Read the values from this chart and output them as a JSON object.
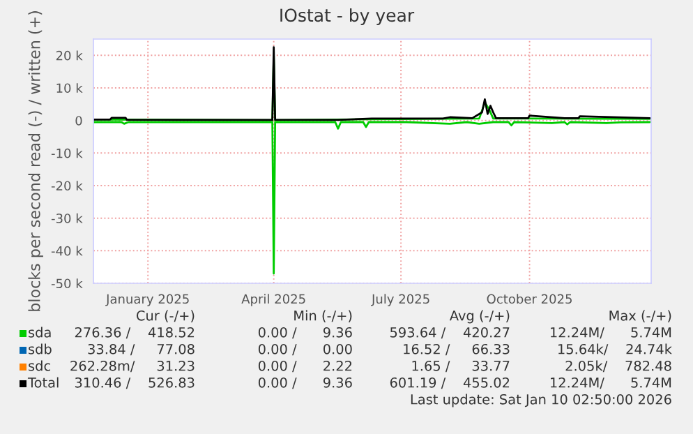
{
  "chart_data": {
    "type": "line",
    "title": "IOstat - by year",
    "ylabel": "blocks per second read (-) / written (+)",
    "xlim": [
      "2024-12-08",
      "2026-01-11"
    ],
    "xticks": [
      {
        "value": "2025-01-16",
        "label": "January 2025"
      },
      {
        "value": "2025-04-16",
        "label": "April 2025"
      },
      {
        "value": "2025-07-16",
        "label": "July 2025"
      },
      {
        "value": "2025-10-16",
        "label": "October 2025"
      }
    ],
    "ylim": [
      -50000,
      25000
    ],
    "yticks": [
      {
        "value": -50000,
        "label": "-50 k"
      },
      {
        "value": -40000,
        "label": "-40 k"
      },
      {
        "value": -30000,
        "label": "-30 k"
      },
      {
        "value": -20000,
        "label": "-20 k"
      },
      {
        "value": -10000,
        "label": "-10 k"
      },
      0,
      {
        "value": 10000,
        "label": "10 k"
      },
      {
        "value": 20000,
        "label": "20 k"
      }
    ],
    "grid": true,
    "legend": "bottom",
    "series": [
      {
        "name": "sda",
        "color": "#00cc00",
        "x": [
          "2024-12-08",
          "2025-04-15",
          "2025-04-16",
          "2025-04-17",
          "2025-06-25",
          "2025-09-10",
          "2025-09-14",
          "2025-09-17",
          "2025-09-20",
          "2026-01-10"
        ],
        "values": [
          300,
          100,
          20000,
          100,
          400,
          600,
          5500,
          3500,
          600,
          500
        ]
      },
      {
        "color": "#00cc00",
        "x": [
          "2024-12-08",
          "2024-12-28",
          "2024-12-30",
          "2025-01-02",
          "2025-02-01",
          "2025-03-01",
          "2025-04-15",
          "2025-04-16",
          "2025-04-17",
          "2025-05-01",
          "2025-05-30",
          "2025-06-01",
          "2025-06-03",
          "2025-06-19",
          "2025-06-21",
          "2025-06-23",
          "2025-07-20",
          "2025-08-20",
          "2025-09-01",
          "2025-09-10",
          "2025-09-20",
          "2025-10-01",
          "2025-10-03",
          "2025-10-05",
          "2025-11-01",
          "2025-11-10",
          "2025-11-12",
          "2025-11-14",
          "2025-12-10",
          "2025-12-20",
          "2026-01-10"
        ],
        "values": [
          -500,
          -500,
          -1000,
          -500,
          -500,
          -500,
          -500,
          -47000,
          -500,
          -500,
          -500,
          -2500,
          -500,
          -500,
          -2000,
          -500,
          -500,
          -1000,
          -500,
          -1000,
          -500,
          -500,
          -1500,
          -500,
          -800,
          -500,
          -1200,
          -500,
          -800,
          -600,
          -500
        ]
      },
      {
        "name": "sdb",
        "color": "#0066b3"
      },
      {
        "name": "sdc",
        "color": "#ff8000"
      },
      {
        "name": "Total",
        "color": "#000000",
        "x": [
          "2024-12-08",
          "2024-12-20",
          "2024-12-21",
          "2024-12-31",
          "2025-01-01",
          "2025-03-01",
          "2025-04-15",
          "2025-04-16",
          "2025-04-17",
          "2025-06-01",
          "2025-06-25",
          "2025-08-15",
          "2025-08-20",
          "2025-09-05",
          "2025-09-12",
          "2025-09-14",
          "2025-09-16",
          "2025-09-18",
          "2025-09-20",
          "2025-09-22",
          "2025-10-15",
          "2025-10-16",
          "2025-11-10",
          "2025-11-20",
          "2025-11-21",
          "2026-01-10"
        ],
        "values": [
          300,
          300,
          800,
          800,
          200,
          150,
          150,
          22500,
          200,
          150,
          600,
          600,
          1000,
          700,
          2500,
          6500,
          2000,
          4500,
          2500,
          700,
          700,
          1500,
          700,
          700,
          1300,
          700
        ]
      }
    ],
    "annotations": [
      "Cur (-/+)",
      "Min (-/+)",
      "Avg (-/+)",
      "Max (-/+)",
      "276.36 /    418.52",
      "0.00 /      9.36",
      "593.64 /    420.27",
      "12.24M/      5.74M",
      "33.84 /     77.08",
      "0.00 /      0.00",
      "16.52 /     66.33",
      "15.64k/    24.74k",
      "262.28m/     31.23",
      "0.00 /      2.22",
      "1.65 /     33.77",
      "2.05k/    782.48",
      "310.46 /    526.83",
      "0.00 /      9.36",
      "601.19 /    455.02",
      "12.24M/      5.74M",
      "Last update: Sat Jan 10 02:50:00 2026"
    ]
  }
}
